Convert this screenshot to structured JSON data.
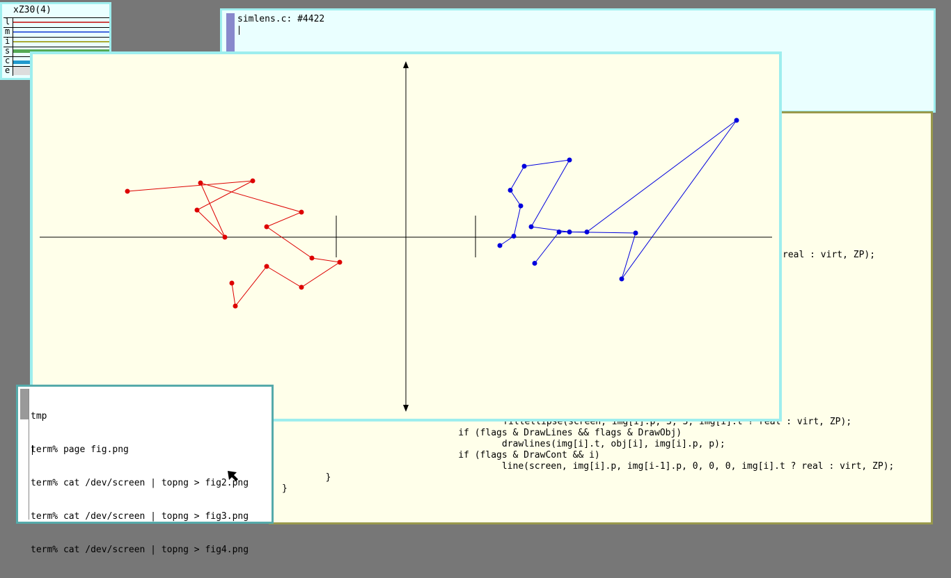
{
  "stats": {
    "title": "xZ30(4)",
    "rows": [
      {
        "label": "l",
        "color": "#cc4444"
      },
      {
        "label": "m",
        "color": "#4466dd"
      },
      {
        "label": "i",
        "color": "#aaaa33"
      },
      {
        "label": "s",
        "color": "#55aa55"
      },
      {
        "label": "c",
        "color": "#2299cc"
      },
      {
        "label": "e",
        "color": "#cccccc"
      }
    ]
  },
  "simlens": {
    "tag_text": "simlens.c: #4422",
    "partial_line": "real : virt, ZP);",
    "code_lines": [
      "\t\tfillellipse(screen, img[i].p, 3, 3, img[i].t ? real : virt, ZP);",
      "\t\tif (flags & DrawLines && flags & DrawObj)",
      "\t\t\tdrawlines(img[i].t, obj[i], img[i].p, p);",
      "\t\tif (flags & DrawCont && i)",
      "\t\t\tline(screen, img[i].p, img[i-1].p, 0, 0, 0, img[i].t ? real : virt, ZP);",
      "\t}",
      "}"
    ]
  },
  "figure": {
    "colors": {
      "object": "#dd0000",
      "image": "#0000dd",
      "axes": "#000000"
    },
    "red_points": [
      [
        -4.0,
        0.0,
        2.2
      ],
      [
        -2.2,
        0.0,
        2.7
      ],
      [
        -3.0,
        0.0,
        1.3
      ],
      [
        -2.6,
        0.0,
        0.0
      ],
      [
        -2.95,
        0.0,
        2.6
      ],
      [
        -1.5,
        0.0,
        1.2
      ],
      [
        -2.0,
        0.0,
        0.5
      ],
      [
        -1.35,
        0.0,
        -1.0
      ],
      [
        -0.95,
        0.0,
        -1.2
      ],
      [
        -1.5,
        0.0,
        -2.4
      ],
      [
        -2.0,
        0.0,
        -1.4
      ],
      [
        -2.45,
        0.0,
        -3.3
      ],
      [
        -2.5,
        0.0,
        -2.2
      ]
    ],
    "blue_points": [
      [
        1.35,
        -0.4
      ],
      [
        1.55,
        0.05
      ],
      [
        1.65,
        1.5
      ],
      [
        1.5,
        2.25
      ],
      [
        1.7,
        3.4
      ],
      [
        2.35,
        3.7
      ],
      [
        1.8,
        0.5
      ],
      [
        2.35,
        0.25
      ],
      [
        3.3,
        0.2
      ],
      [
        3.1,
        -2.0
      ],
      [
        4.75,
        5.6
      ],
      [
        2.6,
        0.25
      ],
      [
        2.2,
        0.25
      ],
      [
        1.85,
        -1.25
      ]
    ]
  },
  "terminal": {
    "lines": [
      "tmp",
      "term% page fig.png",
      "term% cat /dev/screen | topng > fig2.png",
      "term% cat /dev/screen | topng > fig3.png",
      "term% cat /dev/screen | topng > fig4.png"
    ]
  }
}
